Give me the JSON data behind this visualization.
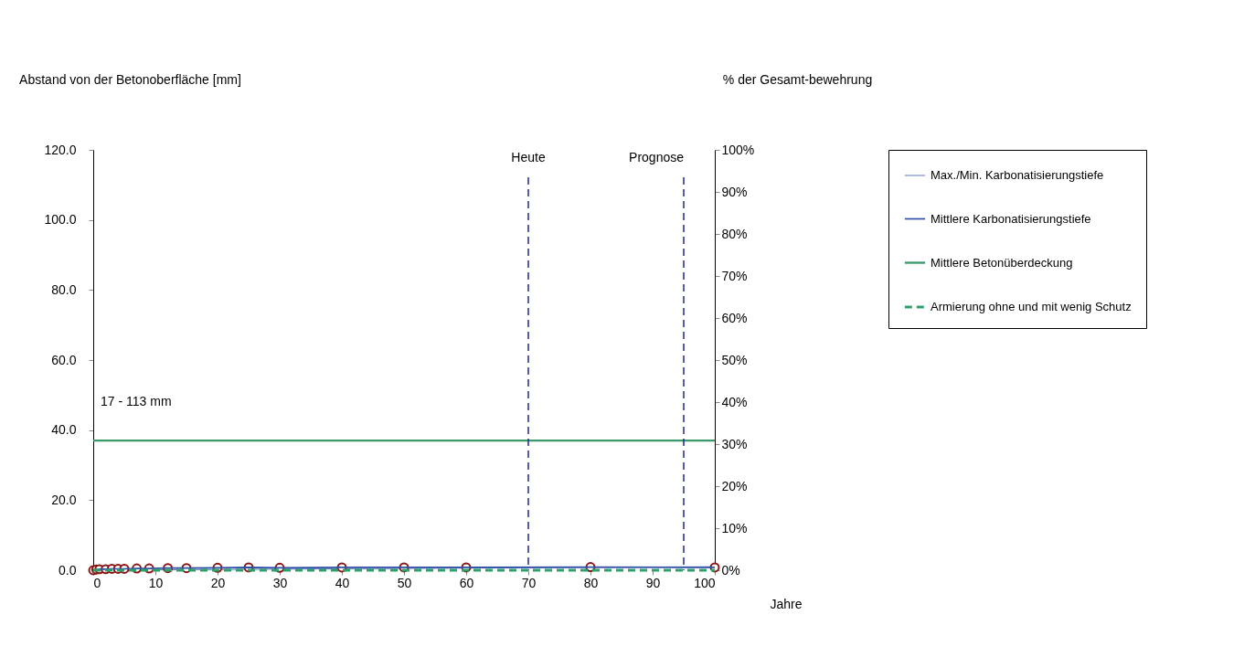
{
  "chart_data": {
    "type": "line",
    "xlabel": "Jahre",
    "ylabel": "Abstand von der Betonoberfläche [mm]",
    "y2label": "% der Gesamt-bewehrung",
    "xlim": [
      0,
      100
    ],
    "xticks": [
      0,
      10,
      20,
      30,
      40,
      50,
      60,
      70,
      80,
      90,
      100
    ],
    "ylim": [
      0,
      120
    ],
    "yticks": [
      {
        "value": 0,
        "label": "0.0"
      },
      {
        "value": 20,
        "label": "20.0"
      },
      {
        "value": 40,
        "label": "40.0"
      },
      {
        "value": 60,
        "label": "60.0"
      },
      {
        "value": 80,
        "label": "80.0"
      },
      {
        "value": 100,
        "label": "100.0"
      },
      {
        "value": 120,
        "label": "120.0"
      }
    ],
    "y2lim": [
      0,
      100
    ],
    "y2ticks": [
      {
        "value": 0,
        "label": "0%"
      },
      {
        "value": 10,
        "label": "10%"
      },
      {
        "value": 20,
        "label": "20%"
      },
      {
        "value": 30,
        "label": "30%"
      },
      {
        "value": 40,
        "label": "40%"
      },
      {
        "value": 50,
        "label": "50%"
      },
      {
        "value": 60,
        "label": "60%"
      },
      {
        "value": 70,
        "label": "70%"
      },
      {
        "value": 80,
        "label": "80%"
      },
      {
        "value": 90,
        "label": "90%"
      },
      {
        "value": 100,
        "label": "100%"
      }
    ],
    "grid": false,
    "legend": "right",
    "series": [
      {
        "name": "Max./Min. Karbonatisierungstiefe",
        "color": "#5b7bc6",
        "x": [
          0,
          100
        ],
        "values": [
          0,
          1.0
        ]
      },
      {
        "type": "scatter",
        "color": "#8b1414",
        "marker": "circle",
        "x": [
          0,
          0.5,
          1,
          2,
          3,
          4,
          5,
          7,
          9,
          12,
          15,
          20,
          25,
          30,
          40,
          50,
          60,
          80,
          100
        ],
        "values": [
          0,
          0.2,
          0.3,
          0.3,
          0.4,
          0.4,
          0.4,
          0.5,
          0.5,
          0.6,
          0.6,
          0.7,
          0.8,
          0.7,
          0.8,
          0.8,
          0.8,
          0.9,
          0.8
        ]
      },
      {
        "name": "Mittlere Karbonatisierungstiefe",
        "color": "#2f4ea6",
        "x": [
          0,
          0.5,
          1,
          2,
          3,
          4,
          5,
          7,
          9,
          12,
          15,
          20,
          25,
          30,
          40,
          50,
          60,
          80,
          100
        ],
        "values": [
          0,
          0.2,
          0.3,
          0.3,
          0.4,
          0.4,
          0.4,
          0.5,
          0.5,
          0.6,
          0.6,
          0.7,
          0.8,
          0.7,
          0.8,
          0.8,
          0.8,
          0.9,
          0.8
        ]
      },
      {
        "name": "Mittlere Betonüberdeckung",
        "color": "#3a9a6a",
        "x": [
          0,
          100
        ],
        "values": [
          37,
          37
        ]
      },
      {
        "name": "Armierung ohne und mit wenig Schutz",
        "color": "#2fa06a",
        "line_style": "dashed",
        "axis": "y2",
        "x": [
          0,
          100
        ],
        "values": [
          0,
          0
        ]
      }
    ],
    "ref_lines": [
      {
        "axis": "x",
        "value": 70,
        "label": "Heute",
        "color": "#1f2a8c",
        "line_style": "dashed"
      },
      {
        "axis": "x",
        "value": 95,
        "label": "Prognose",
        "color": "#1f2a8c",
        "line_style": "dashed"
      }
    ],
    "annotations": [
      "17 - 113 mm"
    ]
  }
}
